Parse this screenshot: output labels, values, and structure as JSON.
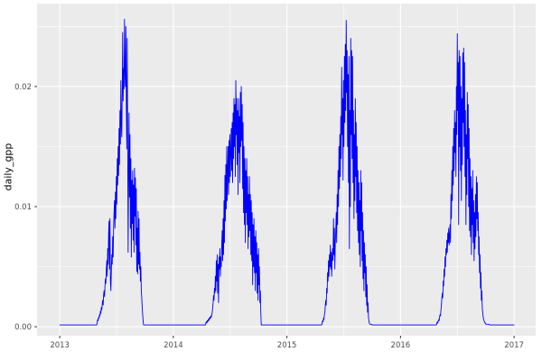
{
  "figure": {
    "background": "#ffffff",
    "panel_background": "#ebebeb",
    "grid_color": "#ffffff",
    "line_color": "#0000ff",
    "tick_mark_color": "#333333",
    "tick_label_color": "#4d4d4d",
    "axis_title_color": "#000000"
  },
  "chart_data": {
    "type": "line",
    "title": "",
    "xlabel": "",
    "ylabel": "daily_gpp",
    "legend": "none",
    "grid": "major+minor",
    "x_domain": [
      2012.8,
      2017.19
    ],
    "y_domain": [
      -0.00075,
      0.0269
    ],
    "x_ticks": [
      2013,
      2014,
      2015,
      2016,
      2017
    ],
    "x_tick_labels": [
      "2013",
      "2014",
      "2015",
      "2016",
      "2017"
    ],
    "x_minor_ticks": [
      2013.5,
      2014.5,
      2015.5,
      2016.5
    ],
    "y_ticks": [
      0.0,
      0.01,
      0.02
    ],
    "y_tick_labels": [
      "0.00",
      "0.01",
      "0.02"
    ],
    "y_minor_ticks": [
      0.005,
      0.015,
      0.025
    ],
    "series_name": "daily_gpp",
    "x_start": 2013.0,
    "x_end": 2017.0,
    "baseline_value": 0.00015,
    "sample_step_years": 0.004,
    "seasons": [
      {
        "year": 2013,
        "peak_value": 0.0256,
        "start_frac": 0.33,
        "values": [
          0.0004,
          0.0006,
          0.0005,
          0.0008,
          0.0007,
          0.001,
          0.0009,
          0.0013,
          0.0011,
          0.0016,
          0.0014,
          0.0019,
          0.0022,
          0.0018,
          0.0026,
          0.003,
          0.0025,
          0.0034,
          0.004,
          0.0036,
          0.0048,
          0.0055,
          0.0042,
          0.0065,
          0.0052,
          0.0078,
          0.0088,
          0.0048,
          0.009,
          0.0038,
          0.003,
          0.0045,
          0.006,
          0.0052,
          0.0075,
          0.0058,
          0.0082,
          0.0095,
          0.0105,
          0.0082,
          0.0112,
          0.009,
          0.0125,
          0.0102,
          0.014,
          0.0118,
          0.015,
          0.0126,
          0.0165,
          0.0135,
          0.018,
          0.0152,
          0.0205,
          0.0168,
          0.0158,
          0.0195,
          0.0245,
          0.0188,
          0.0215,
          0.0198,
          0.0256,
          0.0212,
          0.02,
          0.025,
          0.0185,
          0.0148,
          0.024,
          0.0155,
          0.0062,
          0.013,
          0.0178,
          0.0108,
          0.016,
          0.0082,
          0.014,
          0.0058,
          0.0122,
          0.0086,
          0.013,
          0.0072,
          0.0118,
          0.0062,
          0.0132,
          0.0092,
          0.0124,
          0.0068,
          0.0115,
          0.0046,
          0.0082,
          0.0044,
          0.0096,
          0.0052,
          0.009,
          0.0048,
          0.0062,
          0.0038,
          0.005,
          0.003,
          0.0024,
          0.0016,
          0.001,
          0.0005
        ]
      },
      {
        "year": 2014,
        "peak_value": 0.0205,
        "start_frac": 0.286,
        "values": [
          0.0003,
          0.0004,
          0.0003,
          0.0005,
          0.0004,
          0.0006,
          0.0005,
          0.0007,
          0.0006,
          0.0008,
          0.0007,
          0.0009,
          0.0008,
          0.001,
          0.0012,
          0.0015,
          0.002,
          0.0026,
          0.0022,
          0.0032,
          0.0028,
          0.0042,
          0.003,
          0.0055,
          0.0038,
          0.006,
          0.0028,
          0.0052,
          0.002,
          0.0058,
          0.0048,
          0.0065,
          0.0042,
          0.0058,
          0.005,
          0.0068,
          0.008,
          0.0055,
          0.009,
          0.006,
          0.0105,
          0.007,
          0.0126,
          0.0088,
          0.0135,
          0.0098,
          0.015,
          0.0105,
          0.0128,
          0.015,
          0.011,
          0.0155,
          0.012,
          0.016,
          0.0125,
          0.0145,
          0.0165,
          0.013,
          0.017,
          0.012,
          0.0178,
          0.014,
          0.019,
          0.015,
          0.0185,
          0.0125,
          0.0205,
          0.016,
          0.019,
          0.0135,
          0.018,
          0.011,
          0.019,
          0.0145,
          0.0175,
          0.012,
          0.0195,
          0.015,
          0.02,
          0.0155,
          0.0185,
          0.0115,
          0.017,
          0.0095,
          0.015,
          0.0085,
          0.014,
          0.007,
          0.013,
          0.0095,
          0.014,
          0.0085,
          0.0125,
          0.0065,
          0.011,
          0.0075,
          0.0125,
          0.008,
          0.011,
          0.006,
          0.0105,
          0.0055,
          0.0095,
          0.0035,
          0.0085,
          0.005,
          0.009,
          0.0045,
          0.0075,
          0.003,
          0.008,
          0.0045,
          0.007,
          0.0028,
          0.006,
          0.0022,
          0.0065,
          0.0035,
          0.005,
          0.002,
          0.003,
          0.0012
        ]
      },
      {
        "year": 2015,
        "peak_value": 0.0255,
        "start_frac": 0.31,
        "values": [
          0.0003,
          0.0005,
          0.0004,
          0.0007,
          0.0006,
          0.001,
          0.0012,
          0.0018,
          0.0022,
          0.0018,
          0.0032,
          0.0028,
          0.0045,
          0.0038,
          0.0055,
          0.0042,
          0.006,
          0.005,
          0.0068,
          0.0048,
          0.0062,
          0.0042,
          0.0058,
          0.0065,
          0.0055,
          0.009,
          0.006,
          0.0082,
          0.0048,
          0.007,
          0.008,
          0.0095,
          0.007,
          0.011,
          0.0085,
          0.013,
          0.01,
          0.015,
          0.0115,
          0.016,
          0.0125,
          0.0175,
          0.014,
          0.0216,
          0.016,
          0.019,
          0.0122,
          0.0205,
          0.015,
          0.0225,
          0.017,
          0.0235,
          0.018,
          0.0255,
          0.0195,
          0.023,
          0.015,
          0.021,
          0.012,
          0.0225,
          0.0065,
          0.018,
          0.01,
          0.024,
          0.016,
          0.023,
          0.014,
          0.0225,
          0.012,
          0.018,
          0.009,
          0.016,
          0.0105,
          0.019,
          0.0125,
          0.017,
          0.0095,
          0.015,
          0.008,
          0.013,
          0.007,
          0.012,
          0.006,
          0.0105,
          0.005,
          0.013,
          0.008,
          0.012,
          0.0055,
          0.0095,
          0.004,
          0.008,
          0.003,
          0.007,
          0.0045,
          0.006,
          0.0025,
          0.005,
          0.0018,
          0.0035,
          0.0012,
          0.002,
          0.0008,
          0.0005,
          0.0003,
          0.0002,
          0.0002,
          0.0002,
          0.0002,
          0.0002
        ]
      },
      {
        "year": 2016,
        "peak_value": 0.0244,
        "start_frac": 0.32,
        "values": [
          0.0003,
          0.0004,
          0.0003,
          0.0005,
          0.0006,
          0.0005,
          0.0008,
          0.001,
          0.0009,
          0.0014,
          0.0018,
          0.0024,
          0.0028,
          0.0024,
          0.0038,
          0.0034,
          0.0048,
          0.0042,
          0.0058,
          0.005,
          0.0065,
          0.006,
          0.0072,
          0.0062,
          0.0078,
          0.007,
          0.0082,
          0.0068,
          0.0075,
          0.0085,
          0.007,
          0.011,
          0.009,
          0.013,
          0.0105,
          0.015,
          0.0118,
          0.0165,
          0.013,
          0.018,
          0.0145,
          0.017,
          0.0125,
          0.02,
          0.016,
          0.0244,
          0.018,
          0.022,
          0.0085,
          0.023,
          0.015,
          0.0225,
          0.013,
          0.02,
          0.0105,
          0.019,
          0.0135,
          0.0228,
          0.017,
          0.0232,
          0.015,
          0.022,
          0.0125,
          0.018,
          0.0085,
          0.016,
          0.011,
          0.0195,
          0.014,
          0.0185,
          0.01,
          0.0165,
          0.008,
          0.014,
          0.0075,
          0.0125,
          0.006,
          0.0115,
          0.0085,
          0.013,
          0.007,
          0.0105,
          0.0055,
          0.0095,
          0.0065,
          0.011,
          0.0075,
          0.0125,
          0.009,
          0.012,
          0.008,
          0.0095,
          0.006,
          0.0075,
          0.0045,
          0.006,
          0.0032,
          0.0045,
          0.0022,
          0.003,
          0.0015,
          0.0012,
          0.0008,
          0.0006,
          0.0005,
          0.0004,
          0.0003,
          0.0003,
          0.0002,
          0.0002,
          0.0002,
          0.0002,
          0.0002,
          0.0002,
          0.0002,
          0.0002
        ]
      }
    ]
  }
}
